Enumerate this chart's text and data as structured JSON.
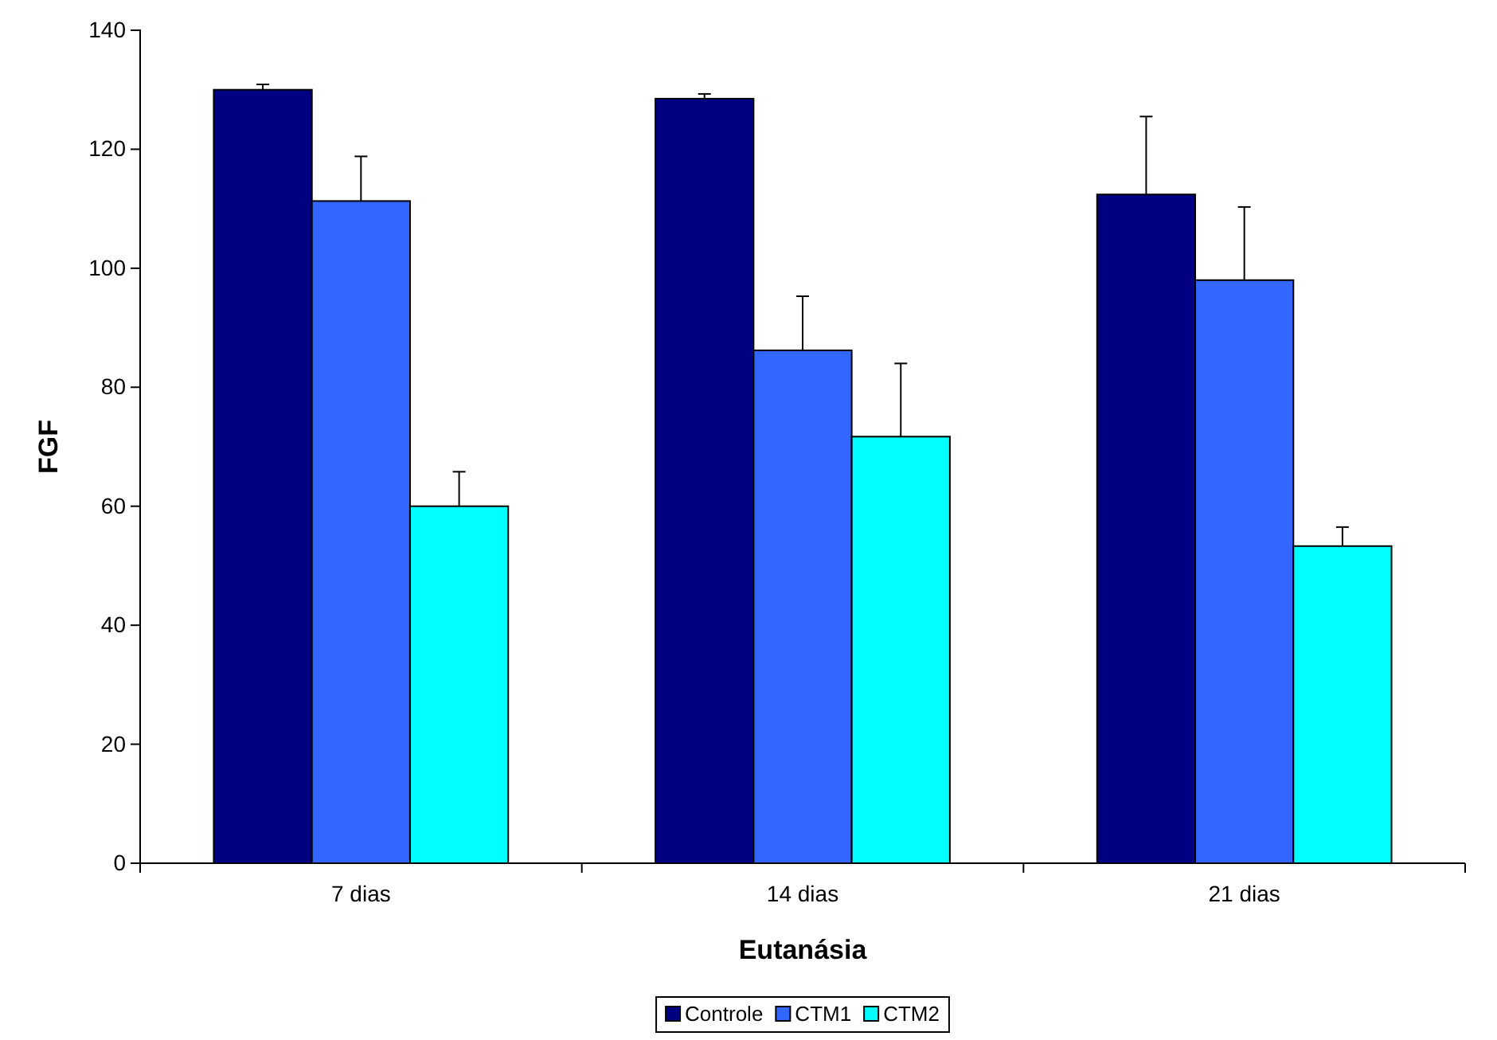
{
  "chart_data": {
    "type": "bar",
    "xlabel": "Eutanásia",
    "ylabel": "FGF",
    "categories": [
      "7 dias",
      "14 dias",
      "21 dias"
    ],
    "series": [
      {
        "name": "Controle",
        "color": "#000080",
        "values": [
          130,
          128.5,
          112.4
        ],
        "errors": [
          0.9,
          0.8,
          13.1
        ]
      },
      {
        "name": "CTM1",
        "color": "#3366ff",
        "values": [
          111.3,
          86.2,
          98
        ],
        "errors": [
          7.5,
          9.1,
          12.3
        ]
      },
      {
        "name": "CTM2",
        "color": "#00ffff",
        "values": [
          60,
          71.7,
          53.3
        ],
        "errors": [
          5.8,
          12.3,
          3.2
        ]
      }
    ],
    "ylim": [
      0,
      140
    ],
    "yticks": [
      0,
      20,
      40,
      60,
      80,
      100,
      120,
      140
    ],
    "grid": false,
    "legend": "bottom"
  }
}
